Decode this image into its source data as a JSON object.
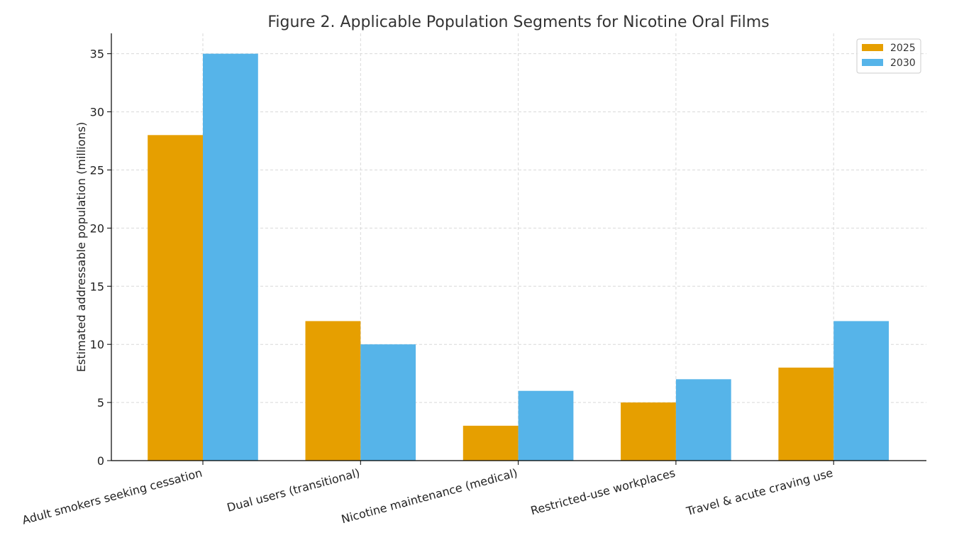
{
  "chart_data": {
    "type": "bar",
    "title": "Figure 2. Applicable Population Segments for Nicotine Oral Films",
    "xlabel": "",
    "ylabel": "Estimated addressable population (millions)",
    "categories": [
      "Adult smokers seeking cessation",
      "Dual users (transitional)",
      "Nicotine maintenance (medical)",
      "Restricted-use workplaces",
      "Travel & acute craving use"
    ],
    "series": [
      {
        "name": "2025",
        "color": "#E69F00",
        "values": [
          28,
          12,
          3,
          5,
          8
        ]
      },
      {
        "name": "2030",
        "color": "#56B4E9",
        "values": [
          35,
          10,
          6,
          7,
          12
        ]
      }
    ],
    "ylim": [
      0,
      36.75
    ],
    "yticks": [
      "0",
      "5",
      "10",
      "15",
      "20",
      "25",
      "30",
      "35"
    ],
    "grid": true,
    "legend_position": "top-right"
  }
}
